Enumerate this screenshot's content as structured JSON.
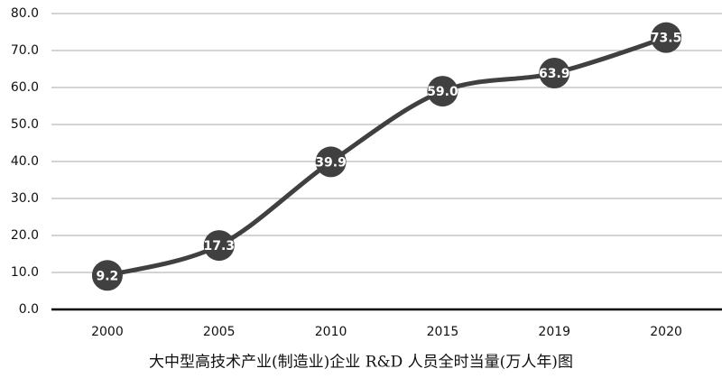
{
  "chart_data": {
    "type": "line",
    "title": "大中型高技术产业(制造业)企业 R&D 人员全时当量(万人年)图",
    "categories": [
      "2000",
      "2005",
      "2010",
      "2015",
      "2019",
      "2020"
    ],
    "values": [
      9.2,
      17.3,
      39.9,
      59.0,
      63.9,
      73.5
    ],
    "value_labels": [
      "9.2",
      "17.3",
      "39.9",
      "59.0",
      "63.9",
      "73.5"
    ],
    "color": "#404040",
    "ylim": [
      0,
      80
    ],
    "yticks": [
      {
        "value": 0,
        "label": "0.0"
      },
      {
        "value": 10,
        "label": "10.0"
      },
      {
        "value": 20,
        "label": "20.0"
      },
      {
        "value": 30,
        "label": "30.0"
      },
      {
        "value": 40,
        "label": "40.0"
      },
      {
        "value": 50,
        "label": "50.0"
      },
      {
        "value": 60,
        "label": "60.0"
      },
      {
        "value": 70,
        "label": "70.0"
      },
      {
        "value": 80,
        "label": "80.0"
      }
    ],
    "grid": true
  }
}
